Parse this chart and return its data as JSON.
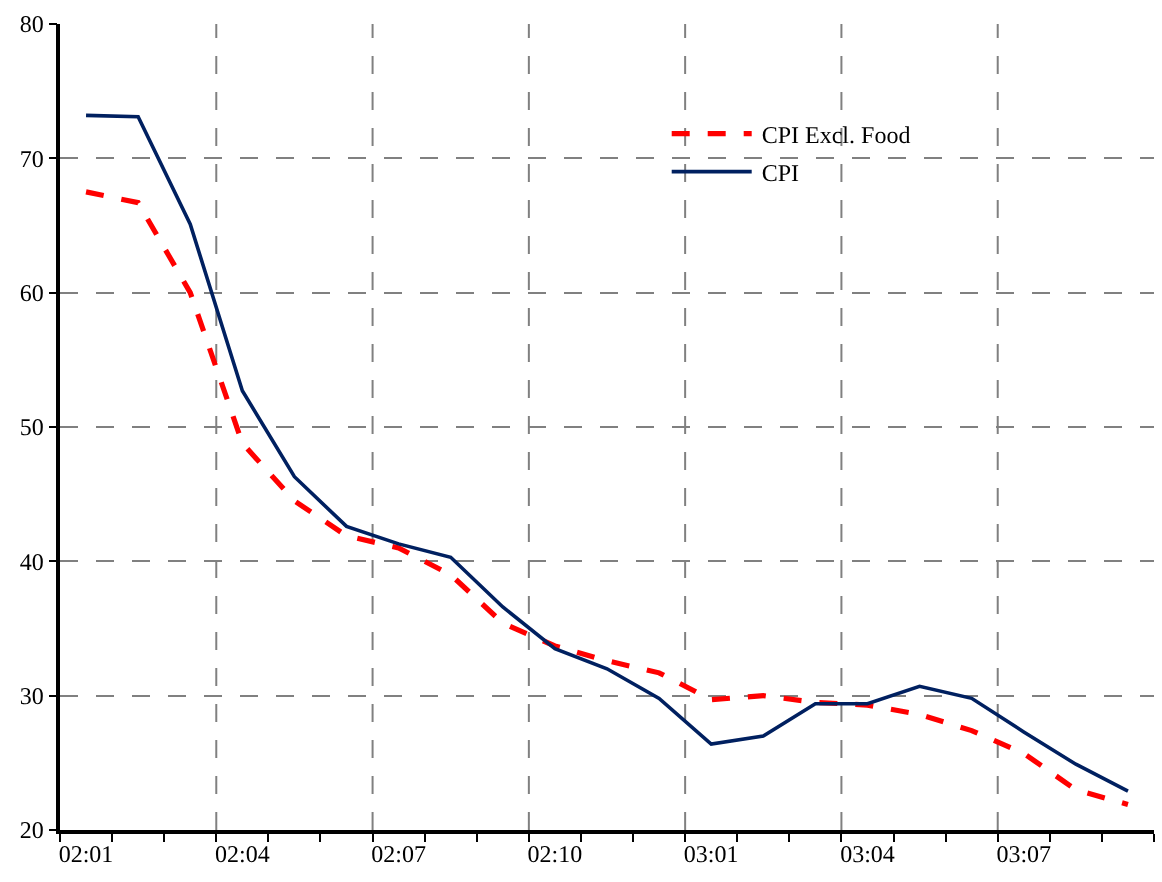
{
  "chart_data": {
    "type": "line",
    "categories": [
      "02:01",
      null,
      null,
      "02:04",
      null,
      null,
      "02:07",
      null,
      null,
      "02:10",
      null,
      null,
      "03:01",
      null,
      null,
      "03:04",
      null,
      null,
      "03:07",
      null,
      null
    ],
    "series": [
      {
        "name": "CPI Excl. Food",
        "color": "#ff0000",
        "line_style": "dashed",
        "values": [
          67.5,
          66.7,
          60.0,
          48.8,
          44.5,
          41.9,
          41.0,
          39.0,
          35.4,
          33.7,
          32.6,
          31.7,
          29.7,
          30.0,
          29.5,
          29.3,
          28.6,
          27.4,
          25.7,
          23.0,
          21.9
        ]
      },
      {
        "name": "CPI",
        "color": "#002060",
        "line_style": "solid",
        "values": [
          73.2,
          73.1,
          65.1,
          52.7,
          46.3,
          42.6,
          41.3,
          40.3,
          36.6,
          33.5,
          32.0,
          29.8,
          26.4,
          27.0,
          29.4,
          29.4,
          30.7,
          29.8,
          27.3,
          24.9,
          22.9
        ]
      }
    ],
    "ylim": [
      20,
      80
    ],
    "yticks": [
      20,
      30,
      40,
      50,
      60,
      70,
      80
    ],
    "grid": true,
    "legend": "top right",
    "marker": "none"
  }
}
